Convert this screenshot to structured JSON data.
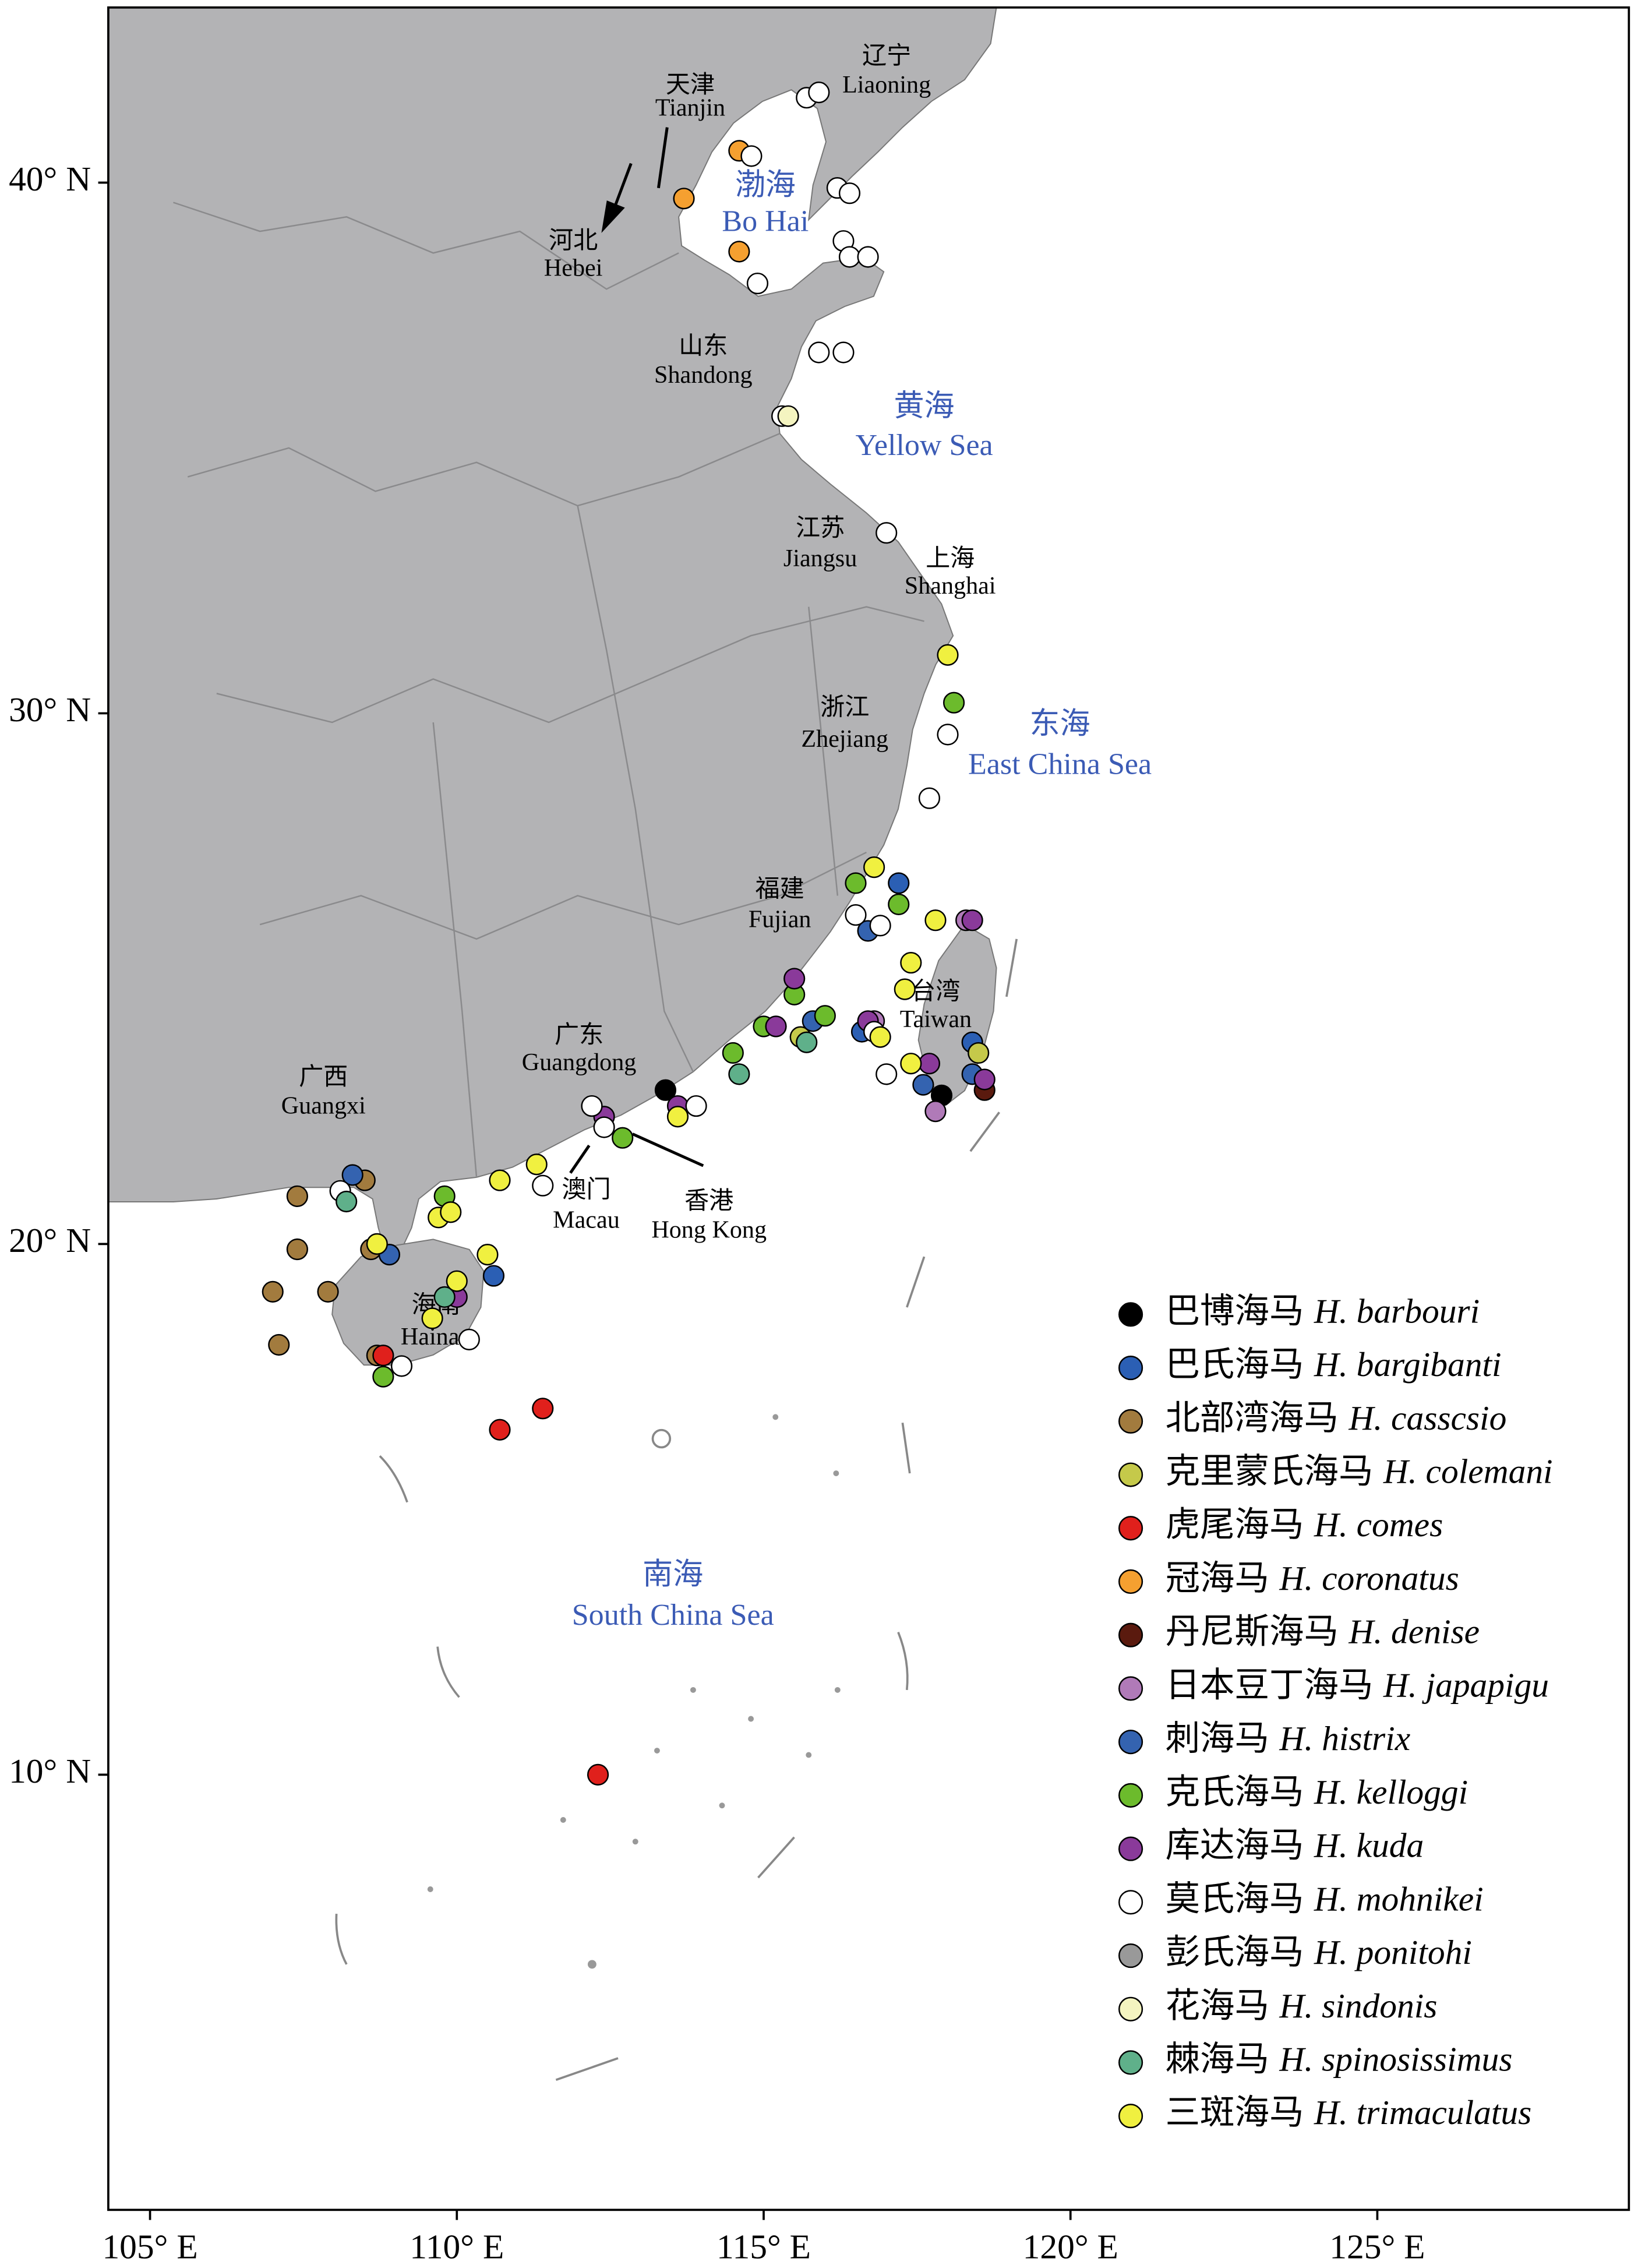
{
  "map": {
    "xlim": [
      104.32,
      129.1
    ],
    "ylim": [
      1.8,
      43.3
    ],
    "xticks": [
      {
        "value": 105,
        "label": "105° E"
      },
      {
        "value": 110,
        "label": "110° E"
      },
      {
        "value": 115,
        "label": "115° E"
      },
      {
        "value": 120,
        "label": "120° E"
      },
      {
        "value": 125,
        "label": "125° E"
      }
    ],
    "yticks": [
      {
        "value": 10,
        "label": "10° N"
      },
      {
        "value": 20,
        "label": "20° N"
      },
      {
        "value": 30,
        "label": "30° N"
      },
      {
        "value": 40,
        "label": "40° N"
      }
    ],
    "provinces": [
      {
        "cn": "辽宁",
        "en": "Liaoning"
      },
      {
        "cn": "天津",
        "en": "Tianjin"
      },
      {
        "cn": "河北",
        "en": "Hebei"
      },
      {
        "cn": "山东",
        "en": "Shandong"
      },
      {
        "cn": "江苏",
        "en": "Jiangsu"
      },
      {
        "cn": "上海",
        "en": "Shanghai"
      },
      {
        "cn": "浙江",
        "en": "Zhejiang"
      },
      {
        "cn": "福建",
        "en": "Fujian"
      },
      {
        "cn": "台湾",
        "en": "Taiwan"
      },
      {
        "cn": "广东",
        "en": "Guangdong"
      },
      {
        "cn": "广西",
        "en": "Guangxi"
      },
      {
        "cn": "澳门",
        "en": "Macau"
      },
      {
        "cn": "香港",
        "en": "Hong Kong"
      },
      {
        "cn": "海南",
        "en": "Hainan"
      }
    ],
    "seas": [
      {
        "cn": "渤海",
        "en": "Bo Hai"
      },
      {
        "cn": "黄海",
        "en": "Yellow Sea"
      },
      {
        "cn": "东海",
        "en": "East China Sea"
      },
      {
        "cn": "南海",
        "en": "South China Sea"
      }
    ],
    "species": [
      {
        "cn": "巴博海马",
        "latin": "H. barbouri",
        "color": "#000000",
        "lon": [
          113.4,
          117.9
        ],
        "lat": [
          22.9,
          22.8
        ]
      },
      {
        "cn": "巴氏海马",
        "latin": "H. bargibanti",
        "color": "#2b5fb4",
        "lon": [
          117.2,
          116.6,
          110.6,
          118.4
        ],
        "lat": [
          26.8,
          24.0,
          19.4,
          23.8
        ]
      },
      {
        "cn": "北部湾海马",
        "latin": "H. casscsio",
        "color": "#a27b3e",
        "lon": [
          107.4,
          107.4,
          107.0,
          107.1,
          107.9,
          108.5,
          108.6,
          108.7
        ],
        "lat": [
          20.9,
          19.9,
          19.1,
          18.1,
          19.1,
          21.2,
          19.9,
          17.9
        ]
      },
      {
        "cn": "克里蒙氏海马",
        "latin": "H. colemani",
        "color": "#c5c94a",
        "lon": [
          118.5,
          115.6
        ],
        "lat": [
          23.6,
          23.9
        ]
      },
      {
        "cn": "虎尾海马",
        "latin": "H. comes",
        "color": "#e0201c",
        "lon": [
          111.4,
          110.7,
          112.3,
          108.8
        ],
        "lat": [
          16.9,
          16.5,
          10.0,
          17.9
        ]
      },
      {
        "cn": "冠海马",
        "latin": "H. coronatus",
        "color": "#f5a030",
        "lon": [
          114.6,
          113.7,
          114.6
        ],
        "lat": [
          40.6,
          39.7,
          38.7
        ]
      },
      {
        "cn": "丹尼斯海马",
        "latin": "H. denise",
        "color": "#5a1a0e",
        "lon": [
          118.6
        ],
        "lat": [
          22.9
        ]
      },
      {
        "cn": "日本豆丁海马",
        "latin": "H. japapigu",
        "color": "#b07ab8",
        "lon": [
          118.3,
          117.8,
          116.8
        ],
        "lat": [
          26.1,
          22.5,
          24.2
        ]
      },
      {
        "cn": "刺海马",
        "latin": "H. histrix",
        "color": "#3463b0",
        "lon": [
          115.8,
          108.3,
          117.6,
          108.9,
          116.7,
          118.4
        ],
        "lat": [
          24.2,
          21.3,
          23.0,
          19.8,
          25.9,
          23.2
        ]
      },
      {
        "cn": "克氏海马",
        "latin": "H. kelloggi",
        "color": "#6cbb2c",
        "lon": [
          118.1,
          116.5,
          117.2,
          115.5,
          116.0,
          115.0,
          114.5,
          112.7,
          109.8,
          108.8
        ],
        "lat": [
          30.2,
          26.8,
          26.4,
          24.7,
          24.3,
          24.1,
          23.6,
          22.0,
          20.9,
          17.5
        ]
      },
      {
        "cn": "库达海马",
        "latin": "H. kuda",
        "color": "#8a3a9a",
        "lon": [
          115.5,
          116.7,
          112.4,
          113.6,
          115.2,
          117.7,
          118.6,
          110.0,
          118.4
        ],
        "lat": [
          25.0,
          24.2,
          22.4,
          22.6,
          24.1,
          23.4,
          23.1,
          19.0,
          26.1
        ]
      },
      {
        "cn": "莫氏海马",
        "latin": "H. mohnikei",
        "color": "#ffffff",
        "lon": [
          115.7,
          115.9,
          114.8,
          116.2,
          116.4,
          116.3,
          116.4,
          116.7,
          114.9,
          115.9,
          116.3,
          115.3,
          117.0,
          118.0,
          117.7,
          116.5,
          116.9,
          116.8,
          117.0,
          112.2,
          113.9,
          112.4,
          111.4,
          108.1,
          109.1,
          110.2
        ],
        "lat": [
          41.6,
          41.7,
          40.5,
          39.9,
          39.8,
          38.9,
          38.6,
          38.6,
          38.1,
          36.8,
          36.8,
          35.6,
          33.4,
          29.6,
          28.4,
          26.2,
          26.0,
          24.0,
          23.2,
          22.6,
          22.6,
          22.2,
          21.1,
          21.0,
          17.7,
          18.2
        ]
      },
      {
        "cn": "彭氏海马",
        "latin": "H. ponitohi",
        "color": "#999999",
        "lon": [],
        "lat": []
      },
      {
        "cn": "花海马",
        "latin": "H. sindonis",
        "color": "#f4f4c0",
        "lon": [
          115.4
        ],
        "lat": [
          35.6
        ]
      },
      {
        "cn": "棘海马",
        "latin": "H. spinosissimus",
        "color": "#5fb08a",
        "lon": [
          114.6,
          115.7,
          108.2,
          109.8
        ],
        "lat": [
          23.2,
          23.8,
          20.8,
          19.0
        ]
      },
      {
        "cn": "三斑海马",
        "latin": "H. trimaculatus",
        "color": "#f0f040",
        "lon": [
          118.0,
          116.8,
          117.8,
          117.4,
          117.3,
          116.9,
          117.4,
          113.6,
          111.3,
          110.7,
          108.7,
          109.7,
          109.9,
          110.5,
          110.0,
          109.6
        ],
        "lat": [
          31.1,
          27.1,
          26.1,
          25.3,
          24.8,
          23.9,
          23.4,
          22.4,
          21.5,
          21.2,
          20.0,
          20.5,
          20.6,
          19.8,
          19.3,
          18.6
        ]
      }
    ]
  }
}
